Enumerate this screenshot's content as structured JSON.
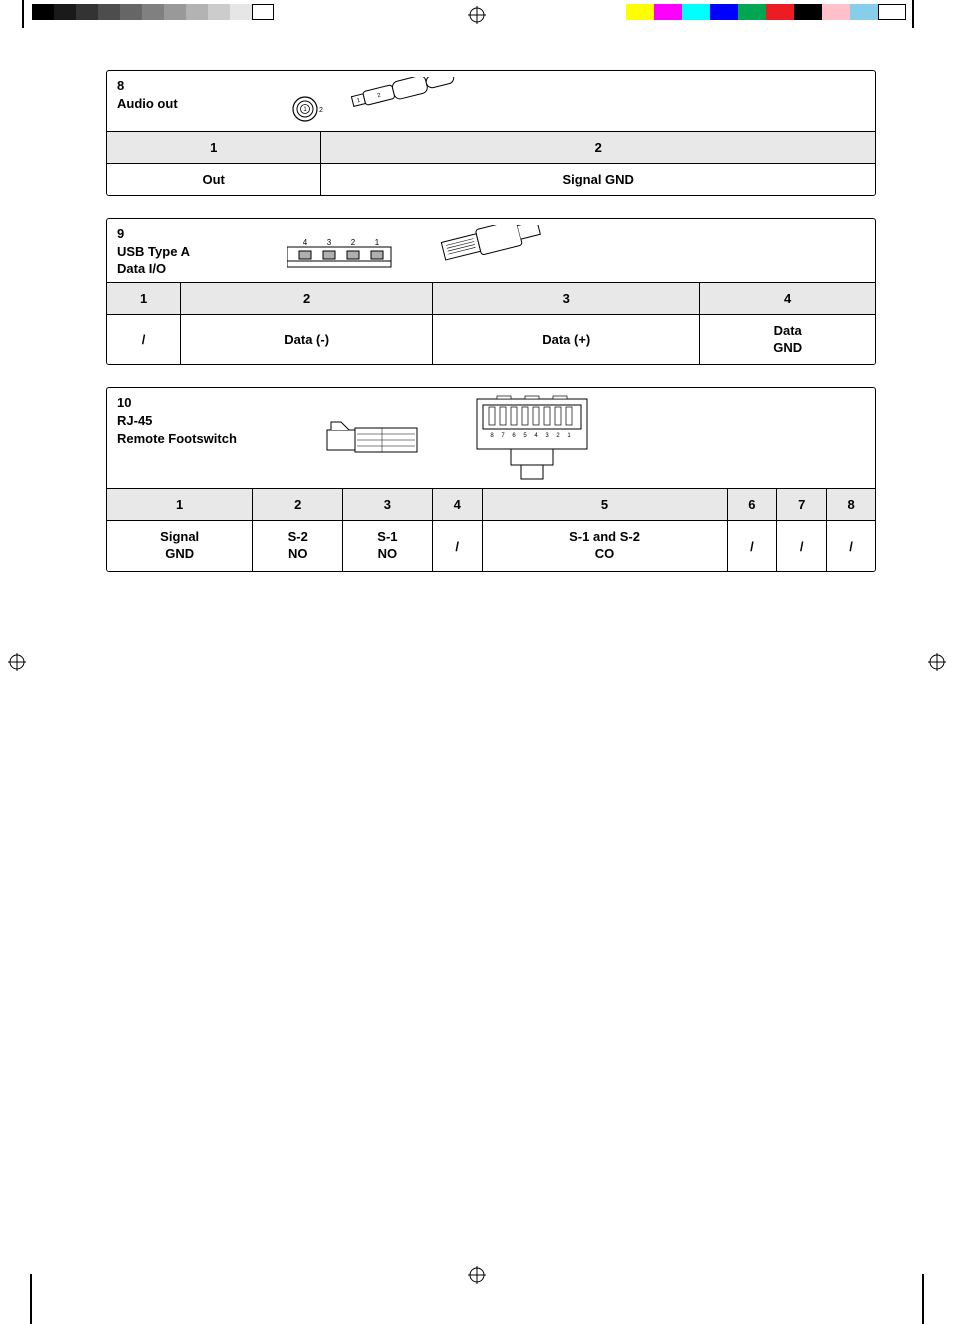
{
  "printer_marks": {
    "grayscale": [
      "#000000",
      "#1a1a1a",
      "#333333",
      "#4d4d4d",
      "#666666",
      "#808080",
      "#999999",
      "#b3b3b3",
      "#cccccc",
      "#e6e6e6",
      "#ffffff"
    ],
    "colors": [
      "#ffff00",
      "#ff00ff",
      "#00ffff",
      "#0000ff",
      "#00a651",
      "#ed1c24",
      "#000000",
      "#ffc0cb",
      "#87ceeb",
      "#ffffff"
    ],
    "border_color": "#000000"
  },
  "section8": {
    "number": "8",
    "title": "Audio out",
    "diagram": {
      "jack_front_labels": [
        "1",
        "2"
      ],
      "jack_side_labels": [
        "1",
        "2"
      ],
      "stroke": "#000000",
      "fill": "#ffffff",
      "label_fontsize": 7
    },
    "columns": [
      "1",
      "2"
    ],
    "rows": [
      [
        "Out",
        "Signal GND"
      ]
    ]
  },
  "section9": {
    "number": "9",
    "title_line1": "USB Type A",
    "title_line2": "Data I/O",
    "diagram": {
      "pin_labels": [
        "4",
        "3",
        "2",
        "1"
      ],
      "stroke": "#000000",
      "fill": "#ffffff",
      "pin_fill": "#b0b0b0",
      "label_fontsize": 8
    },
    "columns": [
      "1",
      "2",
      "3",
      "4"
    ],
    "rows": [
      [
        "/",
        "Data (-)",
        "Data (+)",
        "Data\nGND"
      ]
    ]
  },
  "section10": {
    "number": "10",
    "title_line1": "RJ-45",
    "title_line2": "Remote Footswitch",
    "diagram": {
      "front_pin_labels": [
        "8",
        "7",
        "6",
        "5",
        "4",
        "3",
        "2",
        "1"
      ],
      "stroke": "#000000",
      "fill": "#ffffff",
      "label_fontsize": 6
    },
    "columns": [
      "1",
      "2",
      "3",
      "4",
      "5",
      "6",
      "7",
      "8"
    ],
    "rows": [
      [
        "Signal\nGND",
        "S-2\nNO",
        "S-1\nNO",
        "/",
        "S-1 and S-2\nCO",
        "/",
        "/",
        "/"
      ]
    ]
  },
  "styling": {
    "border_color": "#000000",
    "header_bg": "#e8e8e8",
    "body_bg": "#ffffff",
    "font_family": "Arial",
    "base_fontsize": 13,
    "bold_weight": 700
  }
}
